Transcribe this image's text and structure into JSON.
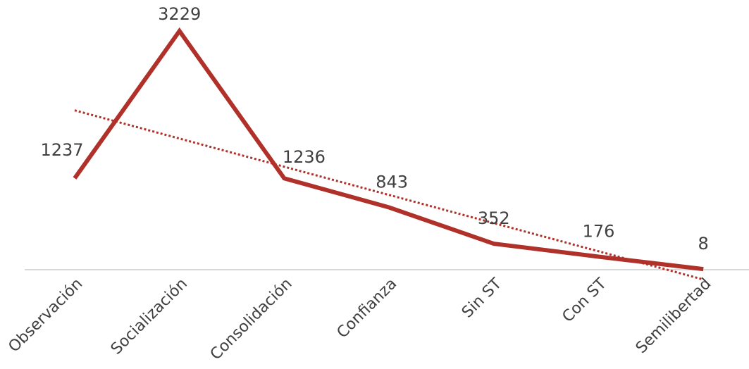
{
  "chart_data": {
    "type": "line",
    "categories": [
      "Observación",
      "Socialización",
      "Consolidación",
      "Confianza",
      "Sin ST",
      "Con ST",
      "Semilibertad"
    ],
    "series": [
      {
        "values": [
          1237,
          3229,
          1236,
          843,
          352,
          176,
          8
        ],
        "color": "#b0312a"
      }
    ],
    "trendline": {
      "type": "linear",
      "style": "dotted",
      "color": "#b0312a"
    },
    "data_labels": [
      "1237",
      "3229",
      "1236",
      "843",
      "352",
      "176",
      "8"
    ],
    "ylim": [
      0,
      3229
    ],
    "grid": false,
    "axis_color": "#d9d9d9"
  }
}
